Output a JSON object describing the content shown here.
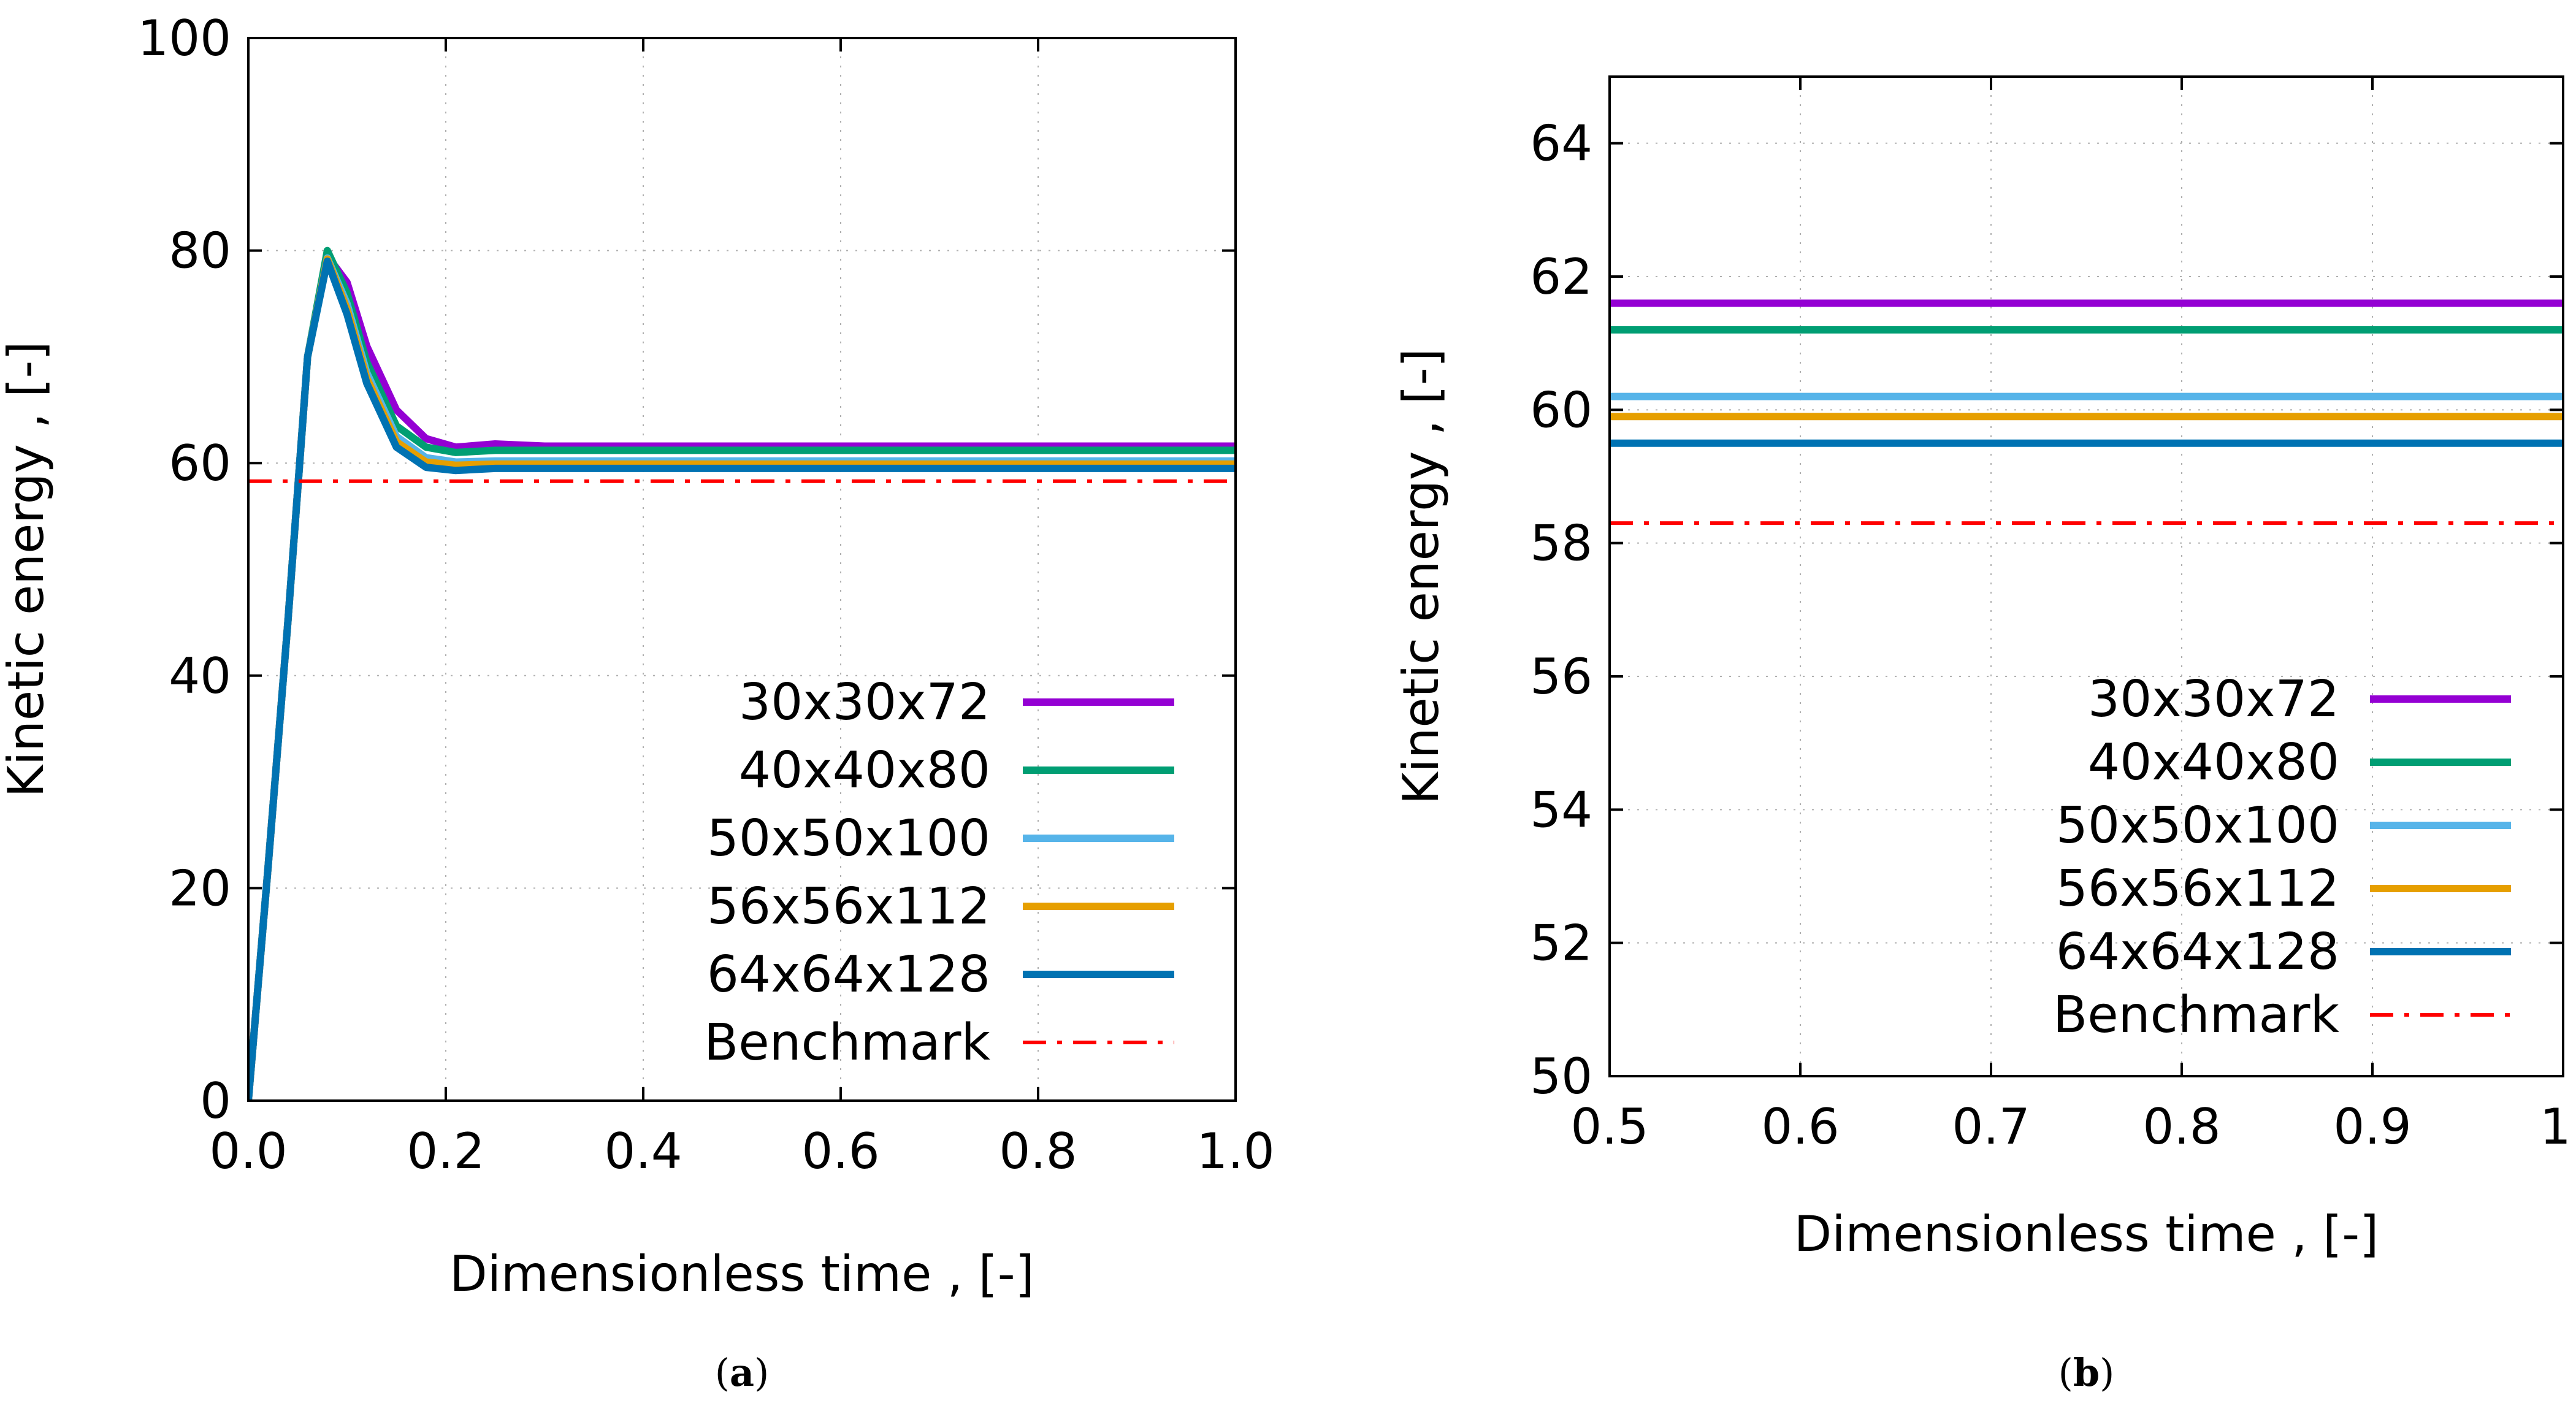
{
  "chart_data": [
    {
      "type": "line",
      "panel_label": "(a)",
      "caption_letter": "a",
      "xlabel": "Dimensionless time , [-]",
      "ylabel": "Kinetic energy , [-]",
      "xlim": [
        0.0,
        1.0
      ],
      "ylim": [
        0,
        100
      ],
      "xticks": [
        0.0,
        0.2,
        0.4,
        0.6,
        0.8,
        1.0
      ],
      "xtick_labels": [
        "0.0",
        "0.2",
        "0.4",
        "0.6",
        "0.8",
        "1.0"
      ],
      "yticks": [
        0,
        20,
        40,
        60,
        80,
        100
      ],
      "ytick_labels": [
        "0",
        "20",
        "40",
        "60",
        "80",
        "100"
      ],
      "grid": true,
      "legend_position": "bottom-right",
      "series": [
        {
          "name": "30x30x72",
          "color": "#9400D3",
          "style": "solid",
          "x": [
            0,
            0.02,
            0.04,
            0.06,
            0.08,
            0.1,
            0.12,
            0.15,
            0.18,
            0.21,
            0.25,
            0.3,
            0.5,
            1.0
          ],
          "y": [
            0,
            22,
            45,
            70,
            79.5,
            77,
            71,
            65,
            62.3,
            61.5,
            61.8,
            61.6,
            61.6,
            61.6
          ]
        },
        {
          "name": "40x40x80",
          "color": "#009E73",
          "style": "solid",
          "x": [
            0,
            0.02,
            0.04,
            0.06,
            0.08,
            0.1,
            0.12,
            0.15,
            0.18,
            0.21,
            0.25,
            0.3,
            0.5,
            1.0
          ],
          "y": [
            0,
            22,
            45,
            70,
            80,
            76,
            69.5,
            63.5,
            61.5,
            61,
            61.2,
            61.2,
            61.2,
            61.2
          ]
        },
        {
          "name": "50x50x100",
          "color": "#56B4E9",
          "style": "solid",
          "x": [
            0,
            0.02,
            0.04,
            0.06,
            0.08,
            0.1,
            0.12,
            0.15,
            0.18,
            0.21,
            0.25,
            0.3,
            0.5,
            1.0
          ],
          "y": [
            0,
            22,
            45,
            70,
            79.3,
            75,
            68.5,
            62.5,
            60.5,
            60.1,
            60.2,
            60.2,
            60.2,
            60.2
          ]
        },
        {
          "name": "56x56x112",
          "color": "#E69F00",
          "style": "solid",
          "x": [
            0,
            0.02,
            0.04,
            0.06,
            0.08,
            0.1,
            0.12,
            0.15,
            0.18,
            0.21,
            0.25,
            0.3,
            0.5,
            1.0
          ],
          "y": [
            0,
            22,
            45,
            70,
            79.2,
            74.5,
            68,
            62,
            60.1,
            59.8,
            59.9,
            59.9,
            59.9,
            59.9
          ]
        },
        {
          "name": "64x64x128",
          "color": "#0072B2",
          "style": "solid",
          "x": [
            0,
            0.02,
            0.04,
            0.06,
            0.08,
            0.1,
            0.12,
            0.15,
            0.18,
            0.21,
            0.25,
            0.3,
            0.5,
            1.0
          ],
          "y": [
            0,
            22,
            45,
            70,
            79,
            74,
            67.5,
            61.5,
            59.6,
            59.3,
            59.5,
            59.5,
            59.5,
            59.5
          ]
        },
        {
          "name": "Benchmark",
          "color": "#FF0000",
          "style": "dashdot",
          "x": [
            0,
            1.0
          ],
          "y": [
            58.3,
            58.3
          ]
        }
      ]
    },
    {
      "type": "line",
      "panel_label": "(b)",
      "caption_letter": "b",
      "xlabel": "Dimensionless time , [-]",
      "ylabel": "Kinetic energy , [-]",
      "xlim": [
        0.5,
        1.0
      ],
      "ylim": [
        50,
        65
      ],
      "xticks": [
        0.5,
        0.6,
        0.7,
        0.8,
        0.9,
        1.0
      ],
      "xtick_labels": [
        "0.5",
        "0.6",
        "0.7",
        "0.8",
        "0.9",
        "1."
      ],
      "yticks": [
        50,
        52,
        54,
        56,
        58,
        60,
        62,
        64
      ],
      "ytick_labels": [
        "50",
        "52",
        "54",
        "56",
        "58",
        "60",
        "62",
        "64"
      ],
      "grid": true,
      "legend_position": "bottom-right",
      "series": [
        {
          "name": "30x30x72",
          "color": "#9400D3",
          "style": "solid",
          "x": [
            0.5,
            1.0
          ],
          "y": [
            61.6,
            61.6
          ]
        },
        {
          "name": "40x40x80",
          "color": "#009E73",
          "style": "solid",
          "x": [
            0.5,
            1.0
          ],
          "y": [
            61.2,
            61.2
          ]
        },
        {
          "name": "50x50x100",
          "color": "#56B4E9",
          "style": "solid",
          "x": [
            0.5,
            1.0
          ],
          "y": [
            60.2,
            60.2
          ]
        },
        {
          "name": "56x56x112",
          "color": "#E69F00",
          "style": "solid",
          "x": [
            0.5,
            1.0
          ],
          "y": [
            59.9,
            59.9
          ]
        },
        {
          "name": "64x64x128",
          "color": "#0072B2",
          "style": "solid",
          "x": [
            0.5,
            1.0
          ],
          "y": [
            59.5,
            59.5
          ]
        },
        {
          "name": "Benchmark",
          "color": "#FF0000",
          "style": "dashdot",
          "x": [
            0.5,
            1.0
          ],
          "y": [
            58.3,
            58.3
          ]
        }
      ]
    }
  ]
}
